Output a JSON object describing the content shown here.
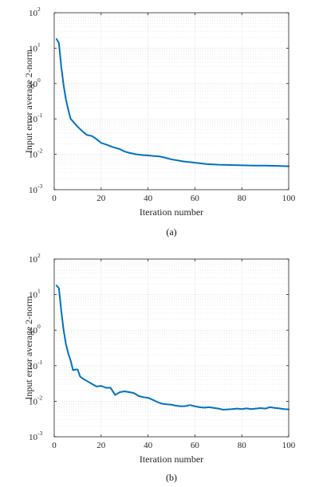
{
  "chart_data": [
    {
      "type": "line",
      "caption": "(a)",
      "xlabel": "Iteration number",
      "ylabel": "Input error average 2-norm",
      "xlim": [
        0,
        100
      ],
      "ylim": [
        0.001,
        100
      ],
      "yscale": "log",
      "x_ticks": [
        "0",
        "20",
        "40",
        "60",
        "80",
        "100"
      ],
      "y_ticks": [
        {
          "base": "10",
          "exp": "-3"
        },
        {
          "base": "10",
          "exp": "-2"
        },
        {
          "base": "10",
          "exp": "-1"
        },
        {
          "base": "10",
          "exp": "0"
        },
        {
          "base": "10",
          "exp": "1"
        },
        {
          "base": "10",
          "exp": "2"
        }
      ],
      "grid": true,
      "series": [
        {
          "color": "#0072BD",
          "x": [
            1,
            2,
            3,
            4,
            5,
            6,
            7,
            8,
            10,
            12,
            14,
            16,
            18,
            20,
            22,
            25,
            28,
            30,
            32,
            35,
            38,
            40,
            42,
            45,
            48,
            50,
            55,
            60,
            65,
            70,
            75,
            80,
            85,
            90,
            95,
            100
          ],
          "y": [
            18,
            14,
            3.0,
            0.9,
            0.35,
            0.18,
            0.1,
            0.085,
            0.06,
            0.045,
            0.035,
            0.033,
            0.027,
            0.021,
            0.019,
            0.016,
            0.014,
            0.012,
            0.011,
            0.01,
            0.0095,
            0.0093,
            0.009,
            0.0087,
            0.0078,
            0.0072,
            0.0063,
            0.0058,
            0.0053,
            0.0051,
            0.005,
            0.0049,
            0.0048,
            0.0048,
            0.0047,
            0.0046
          ]
        }
      ]
    },
    {
      "type": "line",
      "caption": "(b)",
      "xlabel": "Iteration number",
      "ylabel": "Input error average 2-norm",
      "xlim": [
        0,
        100
      ],
      "ylim": [
        0.001,
        100
      ],
      "yscale": "log",
      "x_ticks": [
        "0",
        "20",
        "40",
        "60",
        "80",
        "100"
      ],
      "y_ticks": [
        {
          "base": "10",
          "exp": "-3"
        },
        {
          "base": "10",
          "exp": "-2"
        },
        {
          "base": "10",
          "exp": "-1"
        },
        {
          "base": "10",
          "exp": "0"
        },
        {
          "base": "10",
          "exp": "1"
        },
        {
          "base": "10",
          "exp": "2"
        }
      ],
      "grid": true,
      "series": [
        {
          "color": "#0072BD",
          "x": [
            1,
            2,
            3,
            4,
            5,
            6,
            7,
            8,
            9,
            10,
            11,
            12,
            14,
            16,
            18,
            20,
            22,
            24,
            25,
            26,
            28,
            30,
            32,
            34,
            36,
            38,
            40,
            42,
            44,
            46,
            48,
            50,
            52,
            54,
            56,
            58,
            60,
            62,
            64,
            66,
            68,
            70,
            72,
            74,
            76,
            78,
            80,
            82,
            84,
            86,
            88,
            90,
            92,
            94,
            96,
            98,
            100
          ],
          "y": [
            18,
            15,
            3.5,
            1.0,
            0.4,
            0.22,
            0.14,
            0.075,
            0.078,
            0.078,
            0.05,
            0.044,
            0.037,
            0.031,
            0.026,
            0.027,
            0.024,
            0.024,
            0.019,
            0.015,
            0.018,
            0.019,
            0.018,
            0.017,
            0.014,
            0.013,
            0.0125,
            0.011,
            0.0095,
            0.0085,
            0.0082,
            0.008,
            0.0075,
            0.0072,
            0.0073,
            0.0078,
            0.0072,
            0.0068,
            0.0066,
            0.0068,
            0.0065,
            0.0062,
            0.0058,
            0.0059,
            0.006,
            0.0062,
            0.006,
            0.0063,
            0.006,
            0.0062,
            0.0064,
            0.0062,
            0.0068,
            0.0065,
            0.0063,
            0.006,
            0.0059
          ]
        }
      ]
    }
  ]
}
